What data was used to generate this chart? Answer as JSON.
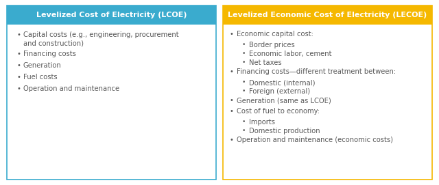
{
  "left_title": "Levelized Cost of Electricity (LCOE)",
  "right_title": "Levelized Economic Cost of Electricity (LECOE)",
  "left_header_color": "#3AABCE",
  "right_header_color": "#F5B800",
  "left_border_color": "#3AABCE",
  "right_border_color": "#F5B800",
  "header_text_color": "#FFFFFF",
  "body_text_color": "#595959",
  "background_color": "#FFFFFF",
  "left_items": [
    {
      "level": 1,
      "text": "Capital costs (e.g., engineering, procurement\nand construction)"
    },
    {
      "level": 1,
      "text": "Financing costs"
    },
    {
      "level": 1,
      "text": "Generation"
    },
    {
      "level": 1,
      "text": "Fuel costs"
    },
    {
      "level": 1,
      "text": "Operation and maintenance"
    }
  ],
  "right_items": [
    {
      "level": 1,
      "text": "Economic capital cost:"
    },
    {
      "level": 2,
      "text": "Border prices"
    },
    {
      "level": 2,
      "text": "Economic labor, cement"
    },
    {
      "level": 2,
      "text": "Net taxes"
    },
    {
      "level": 1,
      "text": "Financing costs—different treatment between:"
    },
    {
      "level": 2,
      "text": "Domestic (internal)"
    },
    {
      "level": 2,
      "text": "Foreign (external)"
    },
    {
      "level": 1,
      "text": "Generation (same as LCOE)"
    },
    {
      "level": 1,
      "text": "Cost of fuel to economy:"
    },
    {
      "level": 2,
      "text": "Imports"
    },
    {
      "level": 2,
      "text": "Domestic production"
    },
    {
      "level": 1,
      "text": "Operation and maintenance (economic costs)"
    }
  ],
  "title_fontsize": 8.0,
  "body_fontsize": 7.2,
  "fig_width": 6.4,
  "fig_height": 2.71,
  "dpi": 100
}
